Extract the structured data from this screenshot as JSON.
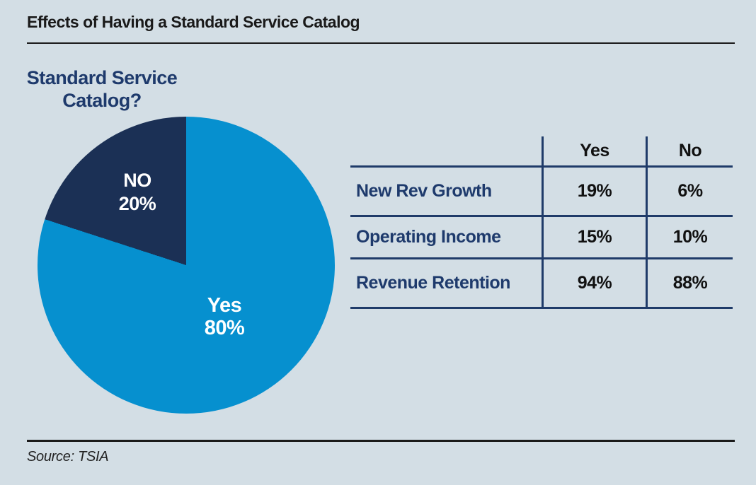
{
  "colors": {
    "background": "#d3dee5",
    "pie_yes": "#0690cf",
    "pie_no": "#1b3055",
    "navy_text": "#1e3a6c",
    "table_line": "#1f3b69",
    "title_text": "#1a1a1a"
  },
  "header": {
    "title": "Effects of Having a Standard Service Catalog"
  },
  "pie_heading": {
    "line1": "Standard Service",
    "line2": "Catalog?"
  },
  "footer": {
    "source": "Source: TSIA"
  },
  "chart_data": [
    {
      "type": "pie",
      "title": "Standard Service Catalog?",
      "slices": [
        {
          "label": "Yes",
          "value": 80,
          "value_label": "80%",
          "color": "#0690cf"
        },
        {
          "label": "NO",
          "value": 20,
          "value_label": "20%",
          "color": "#1b3055"
        }
      ],
      "start_angle_deg": 0,
      "direction": "clockwise",
      "legend_position": "none",
      "labels_inside": true
    },
    {
      "type": "table",
      "columns": [
        "",
        "Yes",
        "No"
      ],
      "rows": [
        {
          "label": "New Rev Growth",
          "values": {
            "yes": "19%",
            "no": "6%"
          }
        },
        {
          "label": "Operating Income",
          "values": {
            "yes": "15%",
            "no": "10%"
          }
        },
        {
          "label": "Revenue Retention",
          "values": {
            "yes": "94%",
            "no": "88%"
          }
        }
      ]
    }
  ]
}
